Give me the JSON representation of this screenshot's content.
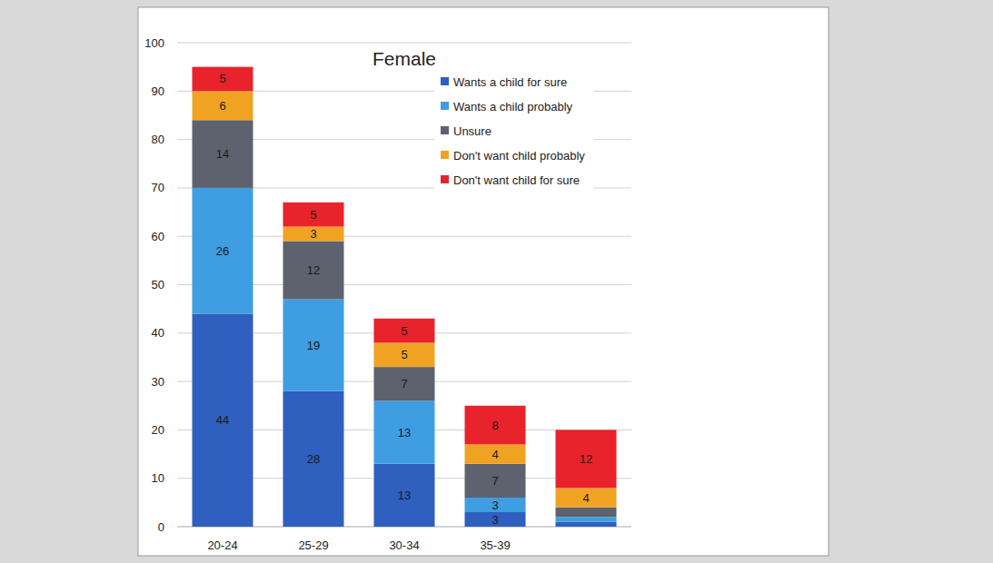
{
  "chart_data": {
    "type": "bar",
    "title": "Female",
    "stacked": true,
    "data_labels": true,
    "grid": true,
    "legend": "top-right",
    "categories": [
      "20-24",
      "25-29",
      "30-34",
      "35-39",
      null
    ],
    "series": [
      {
        "name": "Wants a child for sure",
        "color": "#2f5fbf",
        "values": [
          44,
          28,
          13,
          3,
          1
        ]
      },
      {
        "name": "Wants a child probably",
        "color": "#3f9de2",
        "values": [
          26,
          19,
          13,
          3,
          1
        ]
      },
      {
        "name": "Unsure",
        "color": "#5d626e",
        "values": [
          14,
          12,
          7,
          7,
          2
        ]
      },
      {
        "name": "Don't want child probably",
        "color": "#f0a323",
        "values": [
          6,
          3,
          5,
          4,
          4
        ]
      },
      {
        "name": "Don't want child for sure",
        "color": "#e8232b",
        "values": [
          5,
          5,
          5,
          8,
          12
        ]
      }
    ],
    "ylim": [
      0,
      100
    ],
    "yticks": [
      0,
      10,
      20,
      30,
      40,
      50,
      60,
      70,
      80,
      90,
      100
    ]
  }
}
